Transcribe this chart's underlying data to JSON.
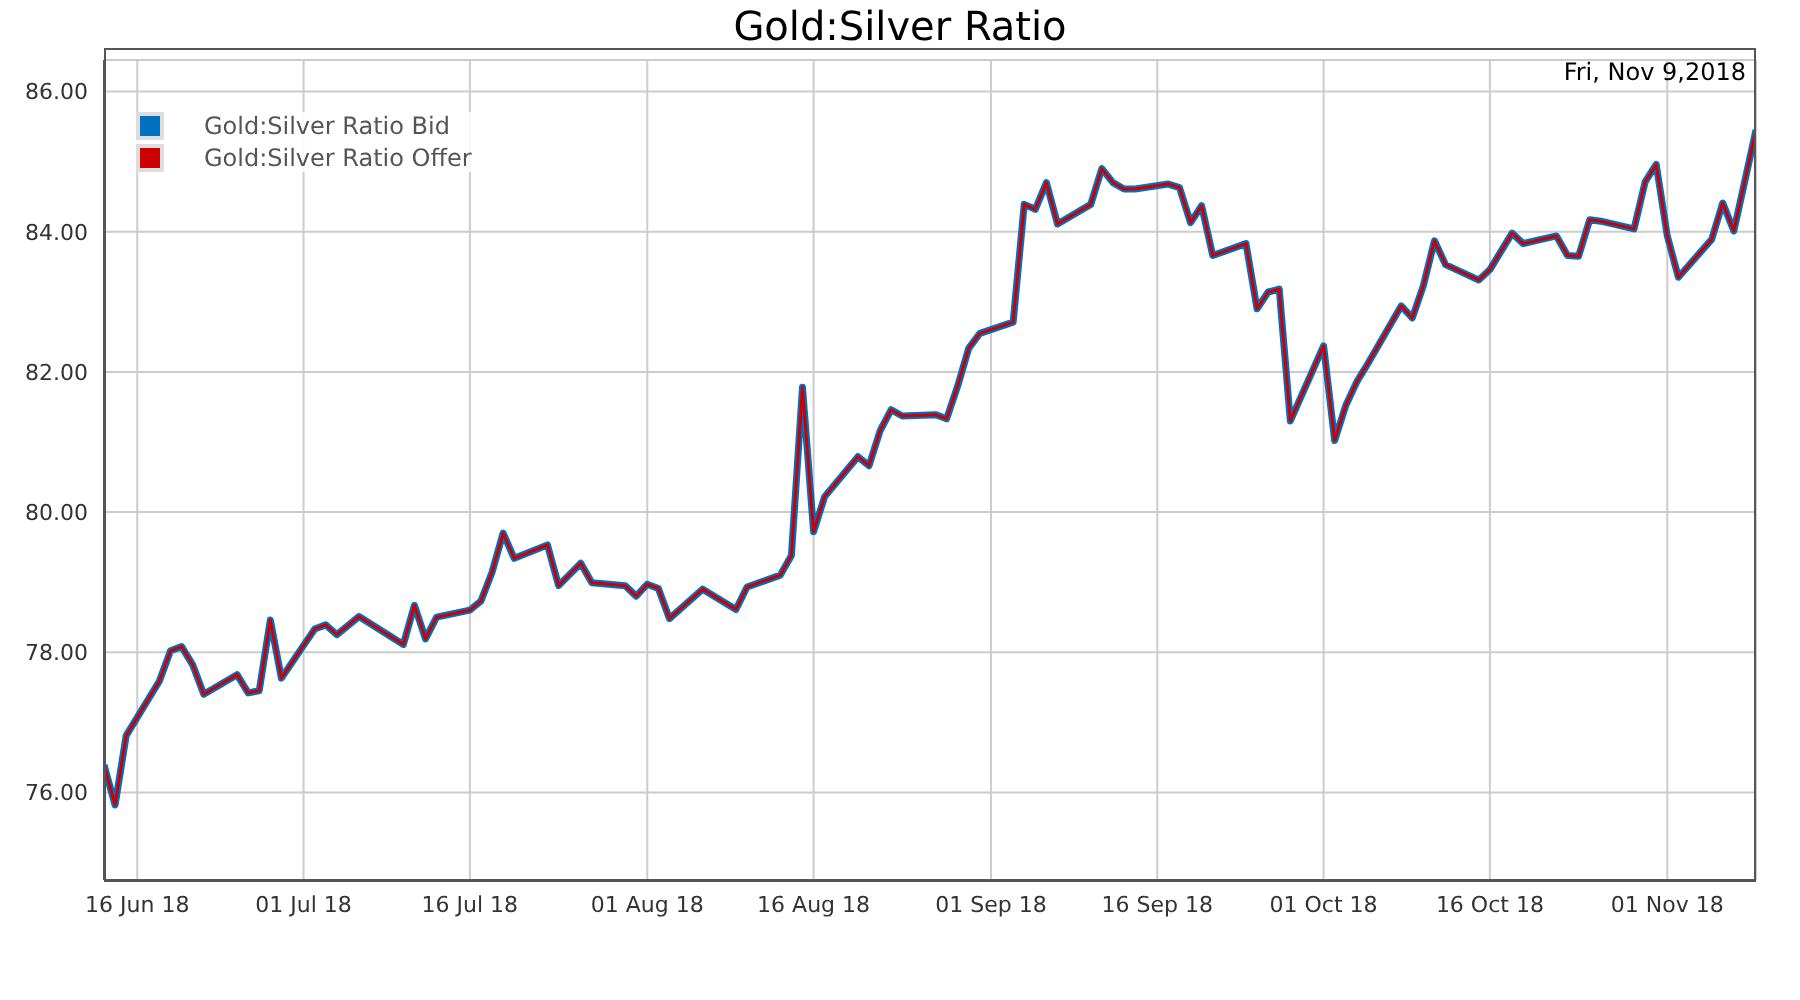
{
  "chart_data": {
    "type": "line",
    "title": "Gold:Silver Ratio",
    "annotations": [
      "Fri, Nov 9,2018"
    ],
    "x": [
      "2018-06-13",
      "2018-06-14",
      "2018-06-15",
      "2018-06-18",
      "2018-06-19",
      "2018-06-20",
      "2018-06-21",
      "2018-06-22",
      "2018-06-25",
      "2018-06-26",
      "2018-06-27",
      "2018-06-28",
      "2018-06-29",
      "2018-07-02",
      "2018-07-03",
      "2018-07-04",
      "2018-07-06",
      "2018-07-10",
      "2018-07-11",
      "2018-07-12",
      "2018-07-13",
      "2018-07-16",
      "2018-07-17",
      "2018-07-18",
      "2018-07-19",
      "2018-07-20",
      "2018-07-23",
      "2018-07-24",
      "2018-07-26",
      "2018-07-27",
      "2018-07-30",
      "2018-07-31",
      "2018-08-01",
      "2018-08-02",
      "2018-08-03",
      "2018-08-06",
      "2018-08-09",
      "2018-08-10",
      "2018-08-13",
      "2018-08-14",
      "2018-08-15",
      "2018-08-16",
      "2018-08-17",
      "2018-08-20",
      "2018-08-21",
      "2018-08-22",
      "2018-08-23",
      "2018-08-24",
      "2018-08-27",
      "2018-08-28",
      "2018-08-29",
      "2018-08-30",
      "2018-08-31",
      "2018-09-03",
      "2018-09-04",
      "2018-09-05",
      "2018-09-06",
      "2018-09-07",
      "2018-09-10",
      "2018-09-11",
      "2018-09-12",
      "2018-09-13",
      "2018-09-14",
      "2018-09-17",
      "2018-09-18",
      "2018-09-19",
      "2018-09-20",
      "2018-09-21",
      "2018-09-24",
      "2018-09-25",
      "2018-09-26",
      "2018-09-27",
      "2018-09-28",
      "2018-10-01",
      "2018-10-02",
      "2018-10-03",
      "2018-10-04",
      "2018-10-05",
      "2018-10-08",
      "2018-10-09",
      "2018-10-10",
      "2018-10-11",
      "2018-10-12",
      "2018-10-15",
      "2018-10-16",
      "2018-10-17",
      "2018-10-18",
      "2018-10-19",
      "2018-10-22",
      "2018-10-23",
      "2018-10-24",
      "2018-10-25",
      "2018-10-26",
      "2018-10-29",
      "2018-10-30",
      "2018-10-31",
      "2018-11-01",
      "2018-11-02",
      "2018-11-05",
      "2018-11-06",
      "2018-11-07",
      "2018-11-09"
    ],
    "series": [
      {
        "name": "Gold:Silver Ratio Bid",
        "color": "#0070c0",
        "values": [
          76.39,
          75.82,
          76.81,
          77.59,
          78.02,
          78.08,
          77.82,
          77.4,
          77.68,
          77.42,
          77.45,
          78.46,
          77.63,
          78.33,
          78.39,
          78.25,
          78.51,
          78.11,
          78.67,
          78.19,
          78.5,
          78.6,
          78.73,
          79.14,
          79.7,
          79.34,
          79.53,
          78.95,
          79.27,
          78.99,
          78.95,
          78.8,
          78.97,
          78.91,
          78.48,
          78.9,
          78.61,
          78.93,
          79.1,
          79.38,
          81.78,
          79.72,
          80.22,
          80.79,
          80.66,
          81.16,
          81.46,
          81.37,
          81.39,
          81.33,
          81.8,
          82.34,
          82.55,
          82.71,
          84.39,
          84.32,
          84.7,
          84.11,
          84.39,
          84.9,
          84.7,
          84.61,
          84.61,
          84.68,
          84.63,
          84.13,
          84.37,
          83.66,
          83.83,
          82.9,
          83.14,
          83.18,
          81.3,
          82.37,
          81.02,
          81.52,
          81.86,
          82.12,
          82.94,
          82.77,
          83.23,
          83.87,
          83.53,
          83.31,
          83.46,
          83.72,
          83.98,
          83.83,
          83.94,
          83.66,
          83.65,
          84.17,
          84.15,
          84.04,
          84.71,
          84.96,
          83.94,
          83.35,
          83.89,
          84.41,
          84.01,
          85.45
        ]
      },
      {
        "name": "Gold:Silver Ratio Offer",
        "color": "#cc0000",
        "values": [
          76.39,
          75.82,
          76.81,
          77.59,
          78.02,
          78.08,
          77.82,
          77.4,
          77.68,
          77.42,
          77.45,
          78.46,
          77.63,
          78.33,
          78.39,
          78.25,
          78.51,
          78.11,
          78.67,
          78.19,
          78.5,
          78.6,
          78.73,
          79.14,
          79.7,
          79.34,
          79.53,
          78.95,
          79.27,
          78.99,
          78.95,
          78.8,
          78.97,
          78.91,
          78.48,
          78.9,
          78.61,
          78.93,
          79.1,
          79.38,
          81.78,
          79.72,
          80.22,
          80.79,
          80.66,
          81.16,
          81.46,
          81.37,
          81.39,
          81.33,
          81.8,
          82.34,
          82.55,
          82.71,
          84.39,
          84.32,
          84.7,
          84.11,
          84.39,
          84.9,
          84.7,
          84.61,
          84.61,
          84.68,
          84.63,
          84.13,
          84.37,
          83.66,
          83.83,
          82.9,
          83.14,
          83.18,
          81.3,
          82.37,
          81.02,
          81.52,
          81.86,
          82.12,
          82.94,
          82.77,
          83.23,
          83.87,
          83.53,
          83.31,
          83.46,
          83.72,
          83.98,
          83.83,
          83.94,
          83.66,
          83.65,
          84.17,
          84.15,
          84.04,
          84.71,
          84.96,
          83.94,
          83.35,
          83.89,
          84.41,
          84.01,
          85.45
        ]
      }
    ],
    "xlim": [
      "2018-06-13",
      "2018-11-09"
    ],
    "xticks": [
      {
        "value": "2018-06-16",
        "label": "16 Jun 18"
      },
      {
        "value": "2018-07-01",
        "label": "01 Jul 18"
      },
      {
        "value": "2018-07-16",
        "label": "16 Jul 18"
      },
      {
        "value": "2018-08-01",
        "label": "01 Aug 18"
      },
      {
        "value": "2018-08-16",
        "label": "16 Aug 18"
      },
      {
        "value": "2018-09-01",
        "label": "01 Sep 18"
      },
      {
        "value": "2018-09-16",
        "label": "16 Sep 18"
      },
      {
        "value": "2018-10-01",
        "label": "01 Oct 18"
      },
      {
        "value": "2018-10-16",
        "label": "16 Oct 18"
      },
      {
        "value": "2018-11-01",
        "label": "01 Nov 18"
      }
    ],
    "ylim": [
      74.75,
      86.45
    ],
    "yticks": [
      {
        "value": 76,
        "label": "76.00"
      },
      {
        "value": 78,
        "label": "78.00"
      },
      {
        "value": 80,
        "label": "80.00"
      },
      {
        "value": 82,
        "label": "82.00"
      },
      {
        "value": 84,
        "label": "84.00"
      },
      {
        "value": 86,
        "label": "86.00"
      }
    ],
    "grid": true,
    "legend": "top left",
    "marker": "none",
    "line_style": "solid"
  }
}
